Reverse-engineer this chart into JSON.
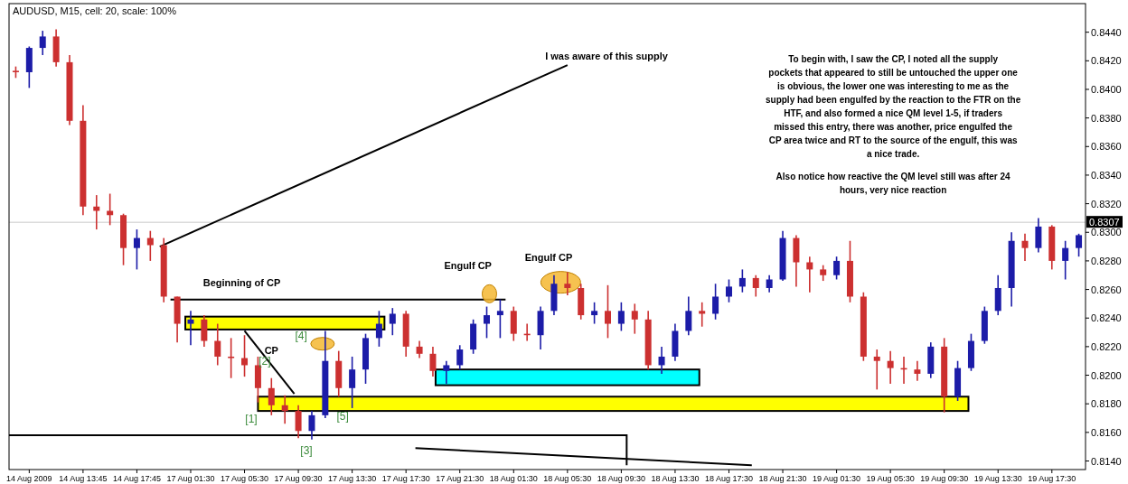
{
  "chart_data": {
    "type": "candlestick",
    "title": "AUDUSD, M15, cell: 20, scale: 100%",
    "categories": [
      null,
      "14 Aug 2009",
      null,
      null,
      null,
      "14 Aug 13:45",
      null,
      null,
      null,
      "14 Aug 17:45",
      null,
      null,
      null,
      "17 Aug 01:30",
      null,
      null,
      null,
      "17 Aug 05:30",
      null,
      null,
      null,
      "17 Aug 09:30",
      null,
      null,
      null,
      "17 Aug 13:30",
      null,
      null,
      null,
      "17 Aug 17:30",
      null,
      null,
      null,
      "17 Aug 21:30",
      null,
      null,
      null,
      "18 Aug 01:30",
      null,
      null,
      null,
      "18 Aug 05:30",
      null,
      null,
      null,
      "18 Aug 09:30",
      null,
      null,
      null,
      "18 Aug 13:30",
      null,
      null,
      null,
      "18 Aug 17:30",
      null,
      null,
      null,
      "18 Aug 21:30",
      null,
      null,
      null,
      "19 Aug 01:30",
      null,
      null,
      null,
      "19 Aug 05:30",
      null,
      null,
      null,
      "19 Aug 09:30",
      null,
      null,
      null,
      "19 Aug 13:30",
      null,
      null,
      null,
      "19 Aug 17:30",
      null,
      null
    ],
    "ohlc": [
      [
        0.8413,
        0.8416,
        0.8408,
        0.8412
      ],
      [
        0.8412,
        0.843,
        0.8401,
        0.8429
      ],
      [
        0.8429,
        0.8441,
        0.8424,
        0.8437
      ],
      [
        0.8437,
        0.8442,
        0.8416,
        0.8419
      ],
      [
        0.8419,
        0.8424,
        0.8375,
        0.8378
      ],
      [
        0.8378,
        0.8389,
        0.8312,
        0.8318
      ],
      [
        0.8318,
        0.8326,
        0.8302,
        0.8315
      ],
      [
        0.8315,
        0.8327,
        0.8305,
        0.8312
      ],
      [
        0.8312,
        0.8313,
        0.8277,
        0.8289
      ],
      [
        0.8289,
        0.8302,
        0.8274,
        0.8296
      ],
      [
        0.8296,
        0.8301,
        0.828,
        0.8291
      ],
      [
        0.8291,
        0.8296,
        0.8251,
        0.8255
      ],
      [
        0.8255,
        0.8255,
        0.8223,
        0.8236
      ],
      [
        0.8236,
        0.8245,
        0.8221,
        0.8239
      ],
      [
        0.8239,
        0.8242,
        0.822,
        0.8224
      ],
      [
        0.8224,
        0.8236,
        0.8207,
        0.8213
      ],
      [
        0.8213,
        0.8226,
        0.8198,
        0.8212
      ],
      [
        0.8212,
        0.8228,
        0.8199,
        0.8207
      ],
      [
        0.8207,
        0.8213,
        0.8181,
        0.8191
      ],
      [
        0.8191,
        0.8198,
        0.8172,
        0.8179
      ],
      [
        0.8179,
        0.8186,
        0.8166,
        0.8175
      ],
      [
        0.8175,
        0.8179,
        0.8156,
        0.8161
      ],
      [
        0.8161,
        0.8175,
        0.8155,
        0.8172
      ],
      [
        0.8172,
        0.8231,
        0.817,
        0.821
      ],
      [
        0.821,
        0.8217,
        0.8185,
        0.8191
      ],
      [
        0.8191,
        0.8213,
        0.8177,
        0.8204
      ],
      [
        0.8204,
        0.8229,
        0.8194,
        0.8226
      ],
      [
        0.8226,
        0.8245,
        0.822,
        0.8236
      ],
      [
        0.8236,
        0.8247,
        0.8228,
        0.8243
      ],
      [
        0.8243,
        0.8245,
        0.8213,
        0.822
      ],
      [
        0.822,
        0.8224,
        0.8212,
        0.8215
      ],
      [
        0.8215,
        0.822,
        0.8199,
        0.8203
      ],
      [
        0.8203,
        0.821,
        0.8194,
        0.8207
      ],
      [
        0.8207,
        0.8221,
        0.8204,
        0.8218
      ],
      [
        0.8218,
        0.8239,
        0.8215,
        0.8236
      ],
      [
        0.8236,
        0.8248,
        0.8226,
        0.8242
      ],
      [
        0.8242,
        0.8253,
        0.8226,
        0.8245
      ],
      [
        0.8245,
        0.8248,
        0.8224,
        0.8229
      ],
      [
        0.8229,
        0.8236,
        0.8224,
        0.8228
      ],
      [
        0.8228,
        0.8248,
        0.8218,
        0.8245
      ],
      [
        0.8245,
        0.827,
        0.8242,
        0.8264
      ],
      [
        0.8264,
        0.8272,
        0.8256,
        0.8261
      ],
      [
        0.8261,
        0.8264,
        0.8239,
        0.8242
      ],
      [
        0.8242,
        0.8251,
        0.8236,
        0.8245
      ],
      [
        0.8245,
        0.8263,
        0.8226,
        0.8236
      ],
      [
        0.8236,
        0.8251,
        0.8231,
        0.8245
      ],
      [
        0.8245,
        0.825,
        0.8229,
        0.8239
      ],
      [
        0.8239,
        0.8245,
        0.8204,
        0.8207
      ],
      [
        0.8207,
        0.822,
        0.8201,
        0.8213
      ],
      [
        0.8213,
        0.8236,
        0.821,
        0.8231
      ],
      [
        0.8231,
        0.8255,
        0.8228,
        0.8245
      ],
      [
        0.8245,
        0.8251,
        0.8234,
        0.8243
      ],
      [
        0.8243,
        0.8264,
        0.8239,
        0.8255
      ],
      [
        0.8255,
        0.8267,
        0.8251,
        0.8262
      ],
      [
        0.8262,
        0.8274,
        0.8258,
        0.8268
      ],
      [
        0.8268,
        0.827,
        0.8255,
        0.8261
      ],
      [
        0.8261,
        0.827,
        0.8258,
        0.8267
      ],
      [
        0.8267,
        0.8301,
        0.8266,
        0.8296
      ],
      [
        0.8296,
        0.8298,
        0.8262,
        0.8279
      ],
      [
        0.8279,
        0.8283,
        0.8258,
        0.8274
      ],
      [
        0.8274,
        0.8277,
        0.8266,
        0.827
      ],
      [
        0.827,
        0.8283,
        0.8267,
        0.828
      ],
      [
        0.828,
        0.8294,
        0.8251,
        0.8255
      ],
      [
        0.8255,
        0.8258,
        0.821,
        0.8213
      ],
      [
        0.8213,
        0.8218,
        0.819,
        0.821
      ],
      [
        0.821,
        0.8217,
        0.8194,
        0.8205
      ],
      [
        0.8205,
        0.8213,
        0.8194,
        0.8204
      ],
      [
        0.8204,
        0.821,
        0.8196,
        0.8201
      ],
      [
        0.8201,
        0.8223,
        0.8198,
        0.822
      ],
      [
        0.822,
        0.8226,
        0.8174,
        0.8185
      ],
      [
        0.8185,
        0.821,
        0.8182,
        0.8205
      ],
      [
        0.8205,
        0.8229,
        0.8203,
        0.8224
      ],
      [
        0.8224,
        0.8248,
        0.8222,
        0.8245
      ],
      [
        0.8245,
        0.827,
        0.8242,
        0.8261
      ],
      [
        0.8261,
        0.83,
        0.8248,
        0.8294
      ],
      [
        0.8294,
        0.8299,
        0.828,
        0.8289
      ],
      [
        0.8289,
        0.831,
        0.8286,
        0.8304
      ],
      [
        0.8304,
        0.8305,
        0.8274,
        0.828
      ],
      [
        0.828,
        0.8294,
        0.8267,
        0.8289
      ],
      [
        0.8289,
        0.8299,
        0.8283,
        0.8298
      ]
    ],
    "colors": [
      "#cc3030",
      "#1c1ca8",
      "#1c1ca8",
      "#cc3030",
      "#cc3030",
      "#cc3030",
      "#cc3030",
      "#cc3030",
      "#cc3030",
      "#1c1ca8",
      "#cc3030",
      "#cc3030",
      "#cc3030",
      "#1c1ca8",
      "#cc3030",
      "#cc3030",
      "#cc3030",
      "#cc3030",
      "#cc3030",
      "#cc3030",
      "#cc3030",
      "#cc3030",
      "#1c1ca8",
      "#1c1ca8",
      "#cc3030",
      "#1c1ca8",
      "#1c1ca8",
      "#1c1ca8",
      "#1c1ca8",
      "#cc3030",
      "#cc3030",
      "#cc3030",
      "#1c1ca8",
      "#1c1ca8",
      "#1c1ca8",
      "#1c1ca8",
      "#1c1ca8",
      "#cc3030",
      "#cc3030",
      "#1c1ca8",
      "#1c1ca8",
      "#cc3030",
      "#cc3030",
      "#1c1ca8",
      "#cc3030",
      "#1c1ca8",
      "#cc3030",
      "#cc3030",
      "#1c1ca8",
      "#1c1ca8",
      "#1c1ca8",
      "#cc3030",
      "#1c1ca8",
      "#1c1ca8",
      "#1c1ca8",
      "#cc3030",
      "#1c1ca8",
      "#1c1ca8",
      "#cc3030",
      "#cc3030",
      "#cc3030",
      "#1c1ca8",
      "#cc3030",
      "#cc3030",
      "#cc3030",
      "#cc3030",
      "#cc3030",
      "#cc3030",
      "#1c1ca8",
      "#cc3030",
      "#1c1ca8",
      "#1c1ca8",
      "#1c1ca8",
      "#1c1ca8",
      "#1c1ca8",
      "#cc3030",
      "#1c1ca8",
      "#cc3030",
      "#1c1ca8",
      "#1c1ca8"
    ],
    "ylim": [
      0.8134,
      0.846
    ],
    "yticks": [
      {
        "value": 0.814,
        "label": "0.8140"
      },
      {
        "value": 0.816,
        "label": "0.8160"
      },
      {
        "value": 0.818,
        "label": "0.8180"
      },
      {
        "value": 0.82,
        "label": "0.8200"
      },
      {
        "value": 0.822,
        "label": "0.8220"
      },
      {
        "value": 0.824,
        "label": "0.8240"
      },
      {
        "value": 0.826,
        "label": "0.8260"
      },
      {
        "value": 0.828,
        "label": "0.8280"
      },
      {
        "value": 0.83,
        "label": "0.8300"
      },
      {
        "value": 0.832,
        "label": "0.8320"
      },
      {
        "value": 0.834,
        "label": "0.8340"
      },
      {
        "value": 0.836,
        "label": "0.8360"
      },
      {
        "value": 0.838,
        "label": "0.8380"
      },
      {
        "value": 0.84,
        "label": "0.8400"
      },
      {
        "value": 0.842,
        "label": "0.8420"
      },
      {
        "value": 0.844,
        "label": "0.8440"
      }
    ],
    "ref_lines": [
      {
        "axis": "y",
        "value": 0.8307,
        "label": "0.8307",
        "color": "#c8c8c8"
      }
    ],
    "annotations": [
      "Beginning of CP",
      "CP",
      "[1]",
      "[2]",
      "[3]",
      "[4]",
      "[5]",
      "Engulf CP",
      "Engulf CP",
      "I was aware of this supply",
      "To begin with, I saw the CP, I noted all the supply pockets that appeared to still be untouched the upper one is obvious, the lower one was interesting to me as the supply had been engulfed by the reaction to the FTR on the HTF, and also formed a nice QM level 1-5, if traders missed this entry, there was another, price engulfed the CP area twice and RT to the source of the engulf, this was a nice trade.",
      "Also notice how reactive the QM level still was after 24 hours, very nice reaction"
    ]
  }
}
